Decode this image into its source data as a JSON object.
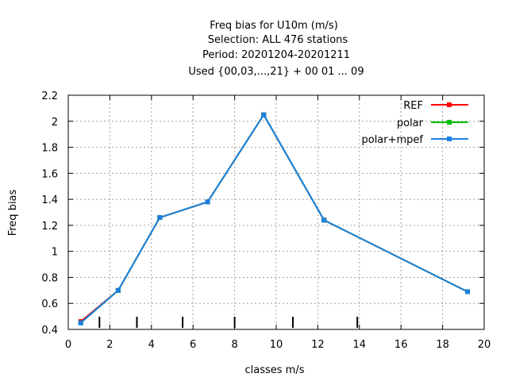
{
  "chart_data": {
    "type": "line",
    "title_lines": [
      "Freq bias  for U10m (m/s)",
      "Selection: ALL    476 stations",
      "Period: 20201204-20201211",
      "Used {00,03,...,21} + 00 01 ... 09"
    ],
    "xlabel": "classes m/s",
    "ylabel": "Freq bias",
    "xlim": [
      0,
      20
    ],
    "ylim": [
      0.4,
      2.2
    ],
    "x_ticks": [
      0,
      2,
      4,
      6,
      8,
      10,
      12,
      14,
      16,
      18,
      20
    ],
    "x_tick_labels": [
      "0",
      "2",
      "4",
      "6",
      "8",
      "10",
      "12",
      "14",
      "16",
      "18",
      "20"
    ],
    "y_ticks": [
      0.4,
      0.6,
      0.8,
      1.0,
      1.2,
      1.4,
      1.6,
      1.8,
      2.0,
      2.2
    ],
    "y_tick_labels": [
      "0.4",
      "0.6",
      "0.8",
      "1",
      "1.2",
      "1.4",
      "1.6",
      "1.8",
      "2",
      "2.2"
    ],
    "grid": true,
    "legend_position": "top-right",
    "class_boundaries": [
      1.5,
      3.3,
      5.5,
      8.0,
      10.8,
      13.9
    ],
    "series": [
      {
        "name": "REF",
        "color": "#ff0000",
        "x": [
          0.6,
          2.4,
          4.4,
          6.7,
          9.4,
          12.3,
          19.2
        ],
        "y": [
          0.46,
          0.7,
          1.26,
          1.38,
          2.05,
          1.24,
          0.69
        ]
      },
      {
        "name": "polar",
        "color": "#00c000",
        "x": [
          0.6,
          2.4,
          4.4,
          6.7,
          9.4,
          12.3,
          19.2
        ],
        "y": [
          0.45,
          0.7,
          1.26,
          1.38,
          2.05,
          1.24,
          0.69
        ]
      },
      {
        "name": "polar+mpef",
        "color": "#1a7fe0",
        "x": [
          0.6,
          2.4,
          4.4,
          6.7,
          9.4,
          12.3,
          19.2
        ],
        "y": [
          0.45,
          0.7,
          1.26,
          1.38,
          2.05,
          1.24,
          0.69
        ]
      }
    ]
  }
}
